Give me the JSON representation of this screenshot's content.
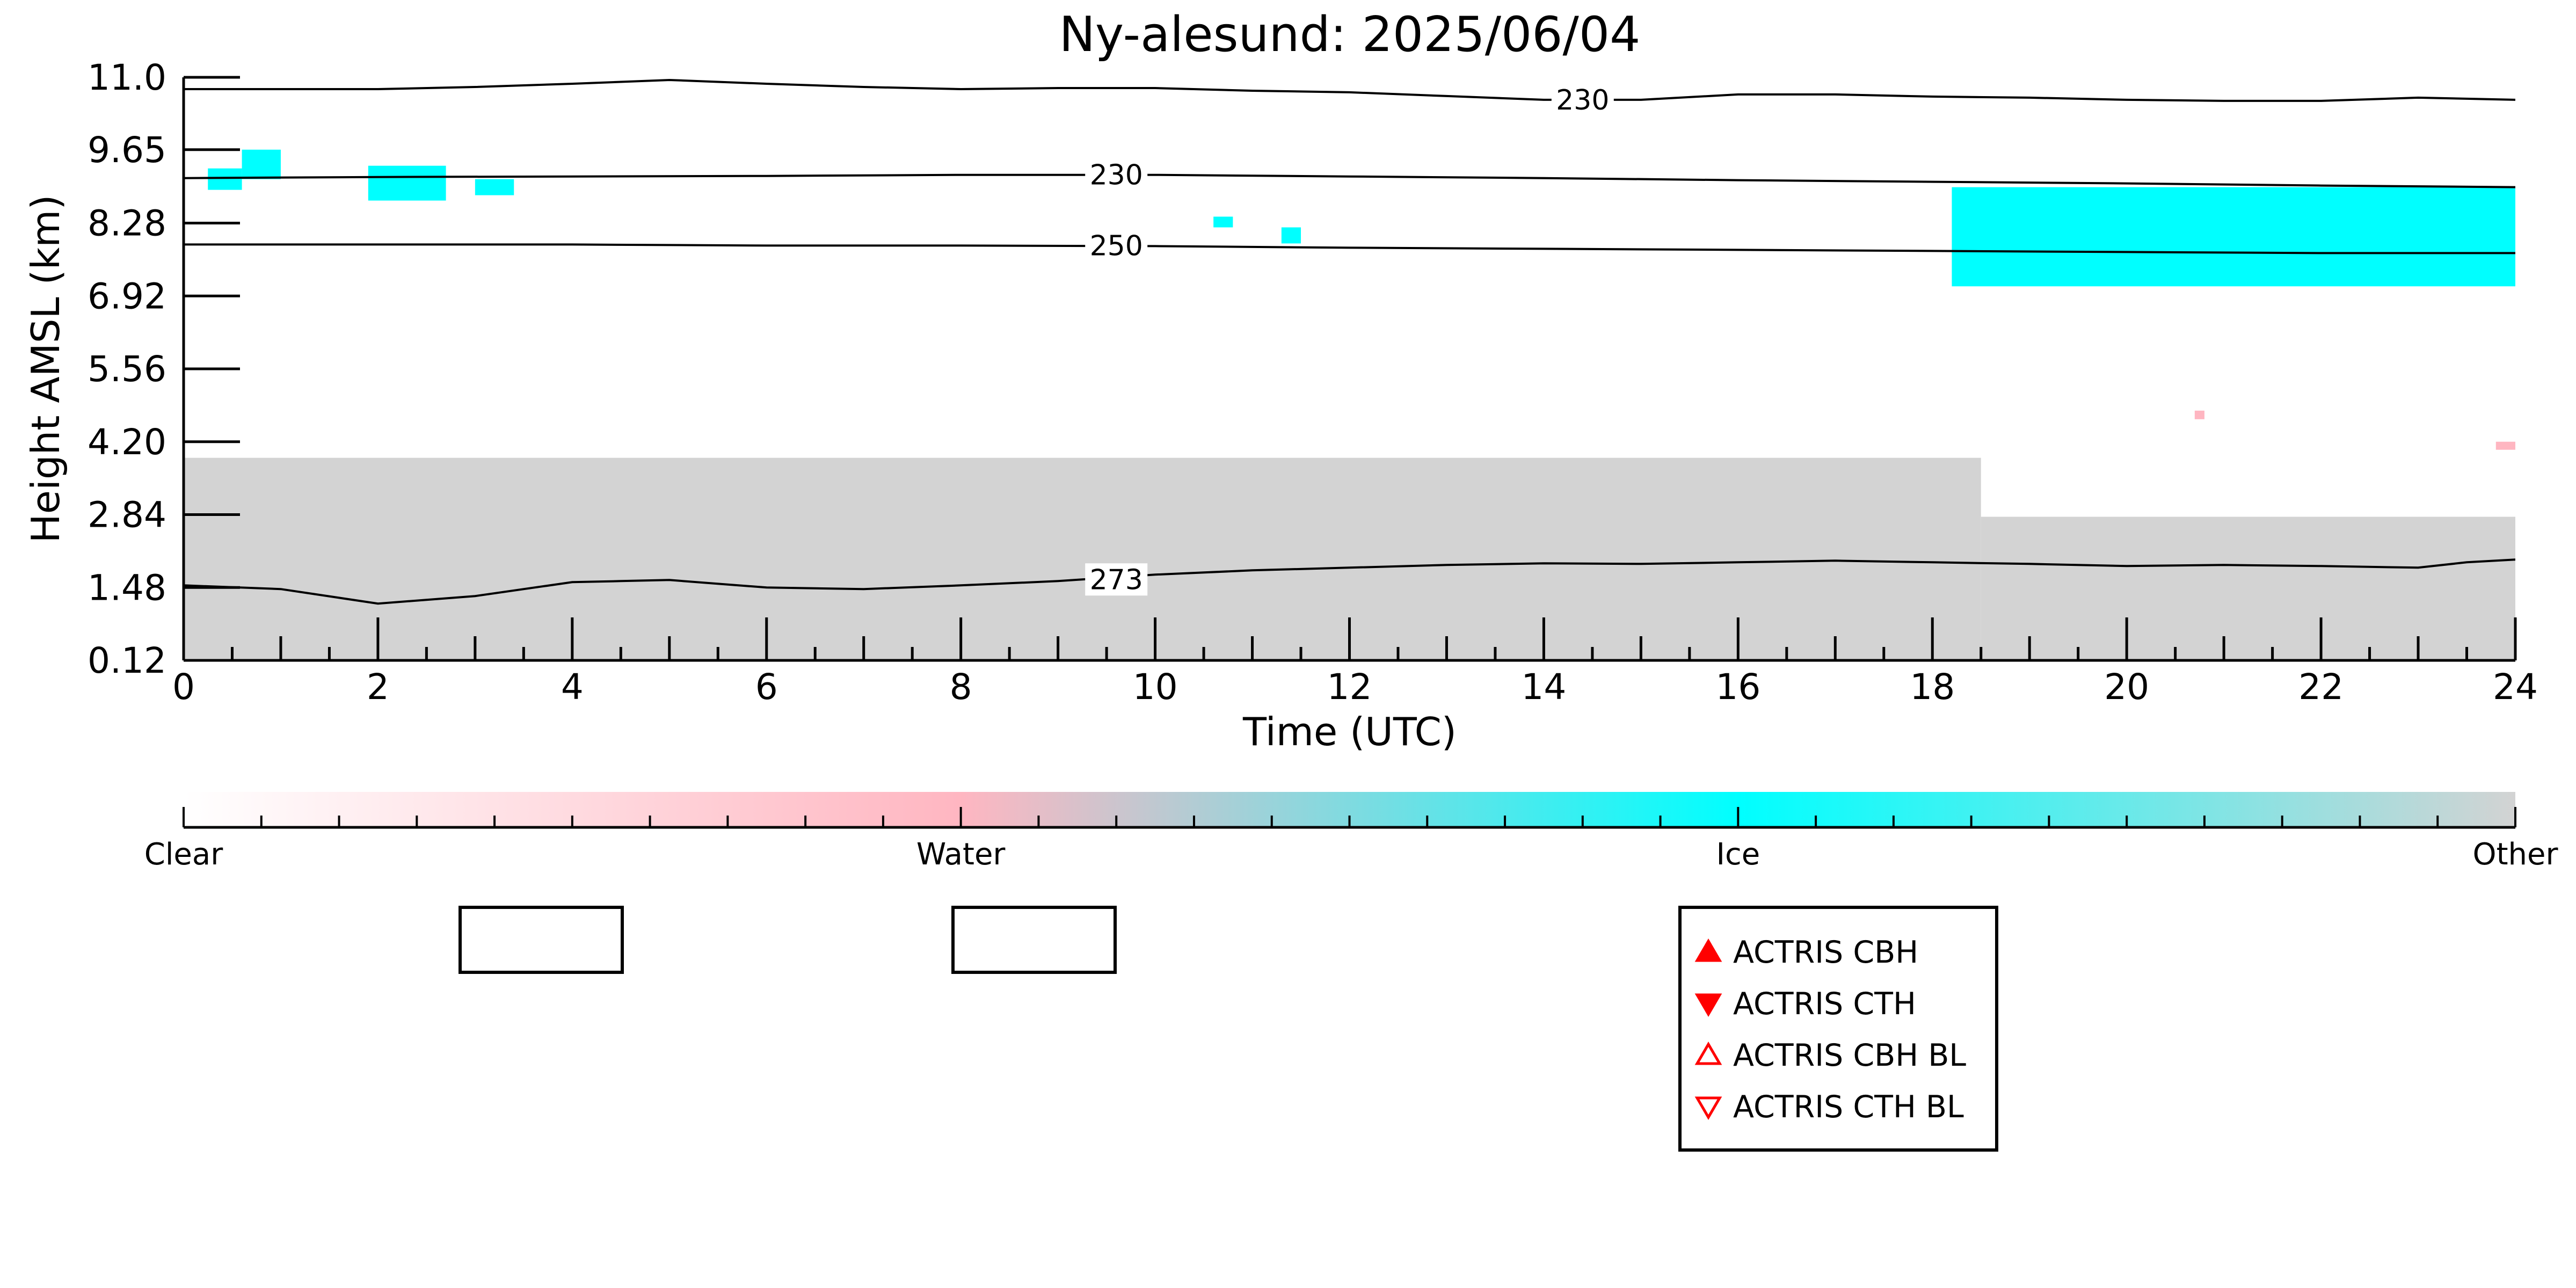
{
  "chart_data": {
    "type": "heatmap",
    "title": "Ny-alesund: 2025/06/04",
    "xlabel": "Time (UTC)",
    "ylabel": "Height AMSL (km)",
    "xlim": [
      0,
      24
    ],
    "ylim": [
      0.12,
      11.0
    ],
    "x_ticks": [
      "0",
      "2",
      "4",
      "6",
      "8",
      "10",
      "12",
      "14",
      "16",
      "18",
      "20",
      "22",
      "24"
    ],
    "y_ticks": [
      "0.12",
      "1.48",
      "2.84",
      "4.20",
      "5.56",
      "6.92",
      "8.28",
      "9.65",
      "11.0"
    ],
    "grid": false,
    "contours": [
      {
        "label": "273",
        "points": [
          [
            0,
            1.52
          ],
          [
            1,
            1.45
          ],
          [
            2,
            1.18
          ],
          [
            3,
            1.32
          ],
          [
            4,
            1.58
          ],
          [
            4.5,
            1.6
          ],
          [
            5,
            1.62
          ],
          [
            6,
            1.48
          ],
          [
            7,
            1.45
          ],
          [
            8,
            1.52
          ],
          [
            9,
            1.6
          ],
          [
            10,
            1.72
          ],
          [
            11,
            1.8
          ],
          [
            12,
            1.85
          ],
          [
            13,
            1.9
          ],
          [
            14,
            1.93
          ],
          [
            15,
            1.92
          ],
          [
            16,
            1.95
          ],
          [
            17,
            1.98
          ],
          [
            18,
            1.95
          ],
          [
            19,
            1.92
          ],
          [
            20,
            1.88
          ],
          [
            21,
            1.9
          ],
          [
            22,
            1.88
          ],
          [
            23,
            1.85
          ],
          [
            23.5,
            1.95
          ],
          [
            24,
            2.0
          ]
        ]
      },
      {
        "label": "250",
        "points": [
          [
            0,
            7.88
          ],
          [
            2,
            7.88
          ],
          [
            4,
            7.88
          ],
          [
            6,
            7.86
          ],
          [
            8,
            7.86
          ],
          [
            10,
            7.85
          ],
          [
            12,
            7.82
          ],
          [
            14,
            7.8
          ],
          [
            16,
            7.78
          ],
          [
            18,
            7.76
          ],
          [
            20,
            7.74
          ],
          [
            22,
            7.72
          ],
          [
            24,
            7.72
          ]
        ]
      },
      {
        "label": "230",
        "points": [
          [
            0,
            9.12
          ],
          [
            2,
            9.14
          ],
          [
            4,
            9.15
          ],
          [
            6,
            9.16
          ],
          [
            8,
            9.18
          ],
          [
            10,
            9.18
          ],
          [
            12,
            9.15
          ],
          [
            14,
            9.12
          ],
          [
            16,
            9.08
          ],
          [
            18,
            9.05
          ],
          [
            20,
            9.02
          ],
          [
            22,
            8.98
          ],
          [
            24,
            8.95
          ]
        ]
      },
      {
        "label": "230",
        "points": [
          [
            0,
            10.78
          ],
          [
            1,
            10.78
          ],
          [
            2,
            10.78
          ],
          [
            3,
            10.82
          ],
          [
            4,
            10.88
          ],
          [
            5,
            10.95
          ],
          [
            6,
            10.88
          ],
          [
            7,
            10.82
          ],
          [
            8,
            10.78
          ],
          [
            9,
            10.8
          ],
          [
            10,
            10.8
          ],
          [
            11,
            10.75
          ],
          [
            12,
            10.72
          ],
          [
            13,
            10.65
          ],
          [
            14,
            10.58
          ],
          [
            15,
            10.58
          ],
          [
            16,
            10.68
          ],
          [
            17,
            10.68
          ],
          [
            18,
            10.64
          ],
          [
            19,
            10.62
          ],
          [
            20,
            10.58
          ],
          [
            21,
            10.56
          ],
          [
            22,
            10.56
          ],
          [
            23,
            10.62
          ],
          [
            24,
            10.58
          ]
        ]
      }
    ],
    "contour_label_positions": [
      {
        "label": "273",
        "x": 9.6,
        "y": 1.63
      },
      {
        "label": "250",
        "x": 9.6,
        "y": 7.86
      },
      {
        "label": "230",
        "x": 9.6,
        "y": 9.18
      },
      {
        "label": "230",
        "x": 14.4,
        "y": 10.58
      }
    ],
    "regions": [
      {
        "class": "Other",
        "x0": 0,
        "x1": 18.5,
        "y0": 0.12,
        "y1": 3.9
      },
      {
        "class": "Other",
        "x0": 18.5,
        "x1": 24,
        "y0": 0.12,
        "y1": 2.8
      },
      {
        "class": "Ice",
        "x0": 18.2,
        "x1": 24,
        "y0": 7.1,
        "y1": 8.95
      },
      {
        "class": "Ice",
        "x0": 0.6,
        "x1": 1.0,
        "y0": 9.1,
        "y1": 9.65
      },
      {
        "class": "Ice",
        "x0": 0.25,
        "x1": 0.6,
        "y0": 8.9,
        "y1": 9.3
      },
      {
        "class": "Ice",
        "x0": 1.9,
        "x1": 2.7,
        "y0": 8.7,
        "y1": 9.35
      },
      {
        "class": "Ice",
        "x0": 3.0,
        "x1": 3.4,
        "y0": 8.8,
        "y1": 9.1
      },
      {
        "class": "Ice",
        "x0": 10.6,
        "x1": 10.8,
        "y0": 8.2,
        "y1": 8.4
      },
      {
        "class": "Ice",
        "x0": 11.3,
        "x1": 11.5,
        "y0": 7.9,
        "y1": 8.2
      },
      {
        "class": "Water",
        "x0": 20.7,
        "x1": 20.8,
        "y0": 4.62,
        "y1": 4.78
      },
      {
        "class": "Water",
        "x0": 23.8,
        "x1": 24,
        "y0": 4.05,
        "y1": 4.2
      }
    ],
    "colorbar": {
      "labels": [
        "Clear",
        "Water",
        "Ice",
        "Other"
      ],
      "colors": [
        "#ffffff",
        "#ffb6c1",
        "#00ffff",
        "#d3d3d3"
      ]
    },
    "legend": {
      "placement": "bottom-right",
      "items": [
        {
          "label": "ACTRIS CBH",
          "marker": "triangle-up-filled",
          "color": "#ff0000"
        },
        {
          "label": "ACTRIS CTH",
          "marker": "triangle-down-filled",
          "color": "#ff0000"
        },
        {
          "label": "ACTRIS CBH BL",
          "marker": "triangle-up-open",
          "color": "#ff0000"
        },
        {
          "label": "ACTRIS CTH BL",
          "marker": "triangle-down-open",
          "color": "#ff0000"
        }
      ]
    },
    "empty_legend_boxes": 2
  }
}
